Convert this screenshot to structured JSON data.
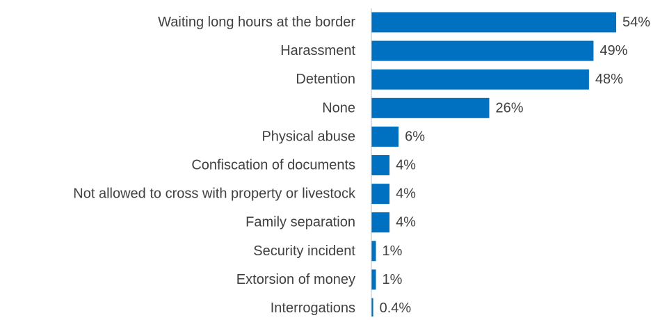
{
  "chart_data": {
    "type": "bar",
    "orientation": "horizontal",
    "categories": [
      "Waiting long hours at the border",
      "Harassment",
      "Detention",
      "None",
      "Physical abuse",
      "Confiscation of documents",
      "Not allowed to cross with property or livestock",
      "Family separation",
      "Security incident",
      "Extorsion of money",
      "Interrogations"
    ],
    "values": [
      54,
      49,
      48,
      26,
      6,
      4,
      4,
      4,
      1,
      1,
      0.4
    ],
    "value_labels": [
      "54%",
      "49%",
      "48%",
      "26%",
      "6%",
      "4%",
      "4%",
      "4%",
      "1%",
      "1%",
      "0.4%"
    ],
    "title": "",
    "xlabel": "",
    "ylabel": "",
    "xlim": [
      0,
      54
    ],
    "grid": false,
    "legend": "none",
    "bar_color": "#0070c0",
    "axis_color": "#bfbfbf",
    "text_color": "#404040"
  }
}
